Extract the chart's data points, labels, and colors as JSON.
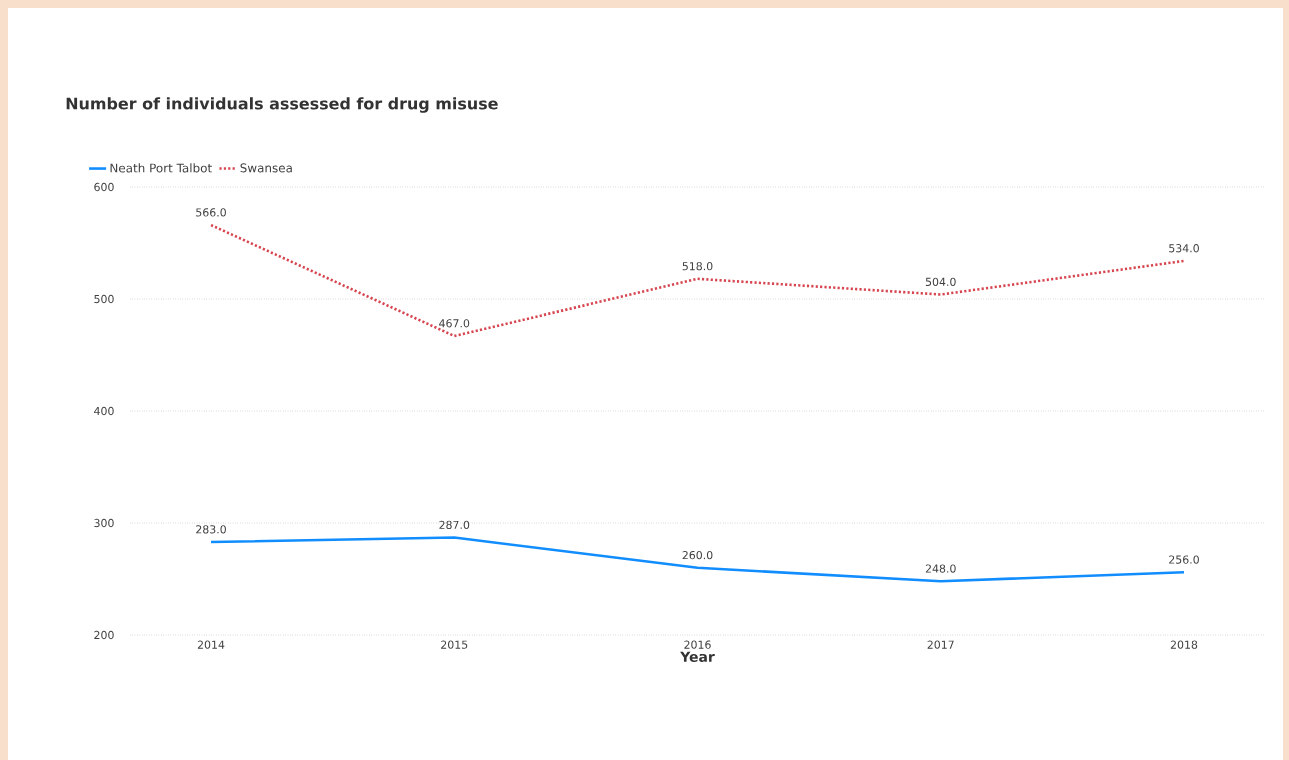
{
  "chart_data": {
    "type": "line",
    "title": "Number of individuals assessed for drug misuse",
    "xlabel": "Year",
    "categories": [
      "2014",
      "2015",
      "2016",
      "2017",
      "2018"
    ],
    "series": [
      {
        "name": "Neath Port Talbot",
        "color": "#118dff",
        "line_style": "solid",
        "values": [
          283,
          287,
          260,
          248,
          256
        ],
        "value_labels": [
          "283.0",
          "287.0",
          "260.0",
          "248.0",
          "256.0"
        ]
      },
      {
        "name": "Swansea",
        "color": "#d64550",
        "line_style": "dotted",
        "values": [
          566,
          467,
          518,
          504,
          534
        ],
        "value_labels": [
          "566.0",
          "467.0",
          "518.0",
          "504.0",
          "534.0"
        ]
      }
    ],
    "ylim": [
      200,
      600
    ],
    "yticks": [
      200,
      300,
      400,
      500,
      600
    ],
    "grid": "y",
    "legend": "top left",
    "marker": "none"
  }
}
